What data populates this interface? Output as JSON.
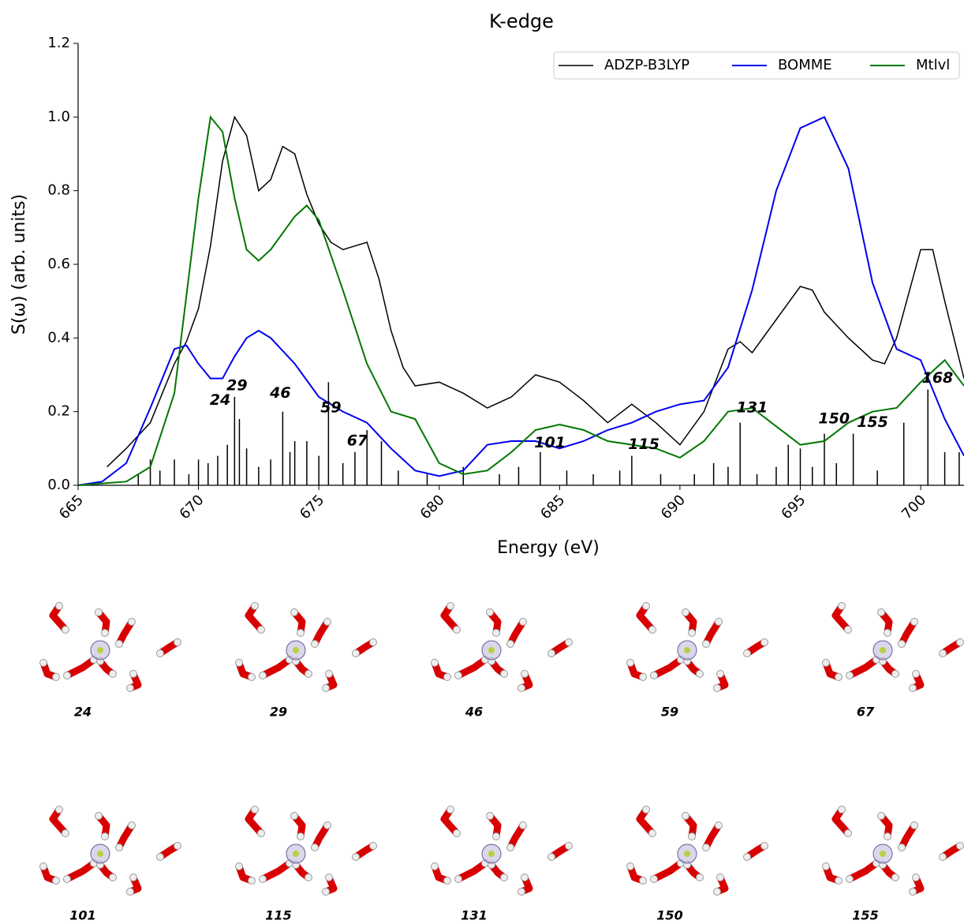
{
  "chart_data": {
    "type": "line",
    "title": "K-edge",
    "x_label": "Energy (eV)",
    "y_label": "S(ω) (arb. units)",
    "xlim": [
      665,
      701.8
    ],
    "ylim": [
      0,
      1.2
    ],
    "xticks": [
      665,
      670,
      675,
      680,
      685,
      690,
      695,
      700
    ],
    "yticks": [
      {
        "value": 0,
        "label": "0.0"
      },
      {
        "value": 0.2,
        "label": "0.2"
      },
      {
        "value": 0.4,
        "label": "0.4"
      },
      {
        "value": 0.6,
        "label": "0.6"
      },
      {
        "value": 0.8,
        "label": "0.8"
      },
      {
        "value": 1,
        "label": "1.0"
      },
      {
        "value": 1.2,
        "label": "1.2"
      }
    ],
    "legend": "upper right",
    "series": [
      {
        "name": "ADZP-B3LYP",
        "color": "#000000",
        "width": 1.5,
        "x": [
          666.2,
          667,
          668,
          669,
          669.5,
          670,
          670.5,
          671,
          671.5,
          672,
          672.5,
          673,
          673.5,
          674,
          674.5,
          675,
          675.5,
          676,
          676.5,
          677,
          677.5,
          678,
          678.5,
          679,
          680,
          681,
          682,
          683,
          684,
          685,
          686,
          687,
          688,
          689,
          690,
          691,
          692,
          692.5,
          693,
          694,
          695,
          695.5,
          696,
          697,
          698,
          698.5,
          699,
          700,
          700.5,
          701,
          701.8
        ],
        "values": [
          0.05,
          0.1,
          0.17,
          0.33,
          0.39,
          0.48,
          0.65,
          0.88,
          1.0,
          0.95,
          0.8,
          0.83,
          0.92,
          0.9,
          0.79,
          0.71,
          0.66,
          0.64,
          0.65,
          0.66,
          0.56,
          0.42,
          0.32,
          0.27,
          0.28,
          0.25,
          0.21,
          0.24,
          0.3,
          0.28,
          0.23,
          0.17,
          0.22,
          0.17,
          0.11,
          0.2,
          0.37,
          0.39,
          0.36,
          0.45,
          0.54,
          0.53,
          0.47,
          0.4,
          0.34,
          0.33,
          0.4,
          0.64,
          0.64,
          0.5,
          0.29
        ]
      },
      {
        "name": "BOMME",
        "color": "#0000ee",
        "width": 2,
        "x": [
          665,
          666,
          667,
          668,
          669,
          669.5,
          670,
          670.5,
          671,
          671.5,
          672,
          672.5,
          673,
          674,
          675,
          676,
          677,
          678,
          679,
          680,
          681,
          682,
          683,
          684,
          685,
          686,
          687,
          688,
          689,
          690,
          691,
          692,
          693,
          694,
          695,
          696,
          697,
          698,
          699,
          700,
          701,
          701.8
        ],
        "values": [
          0,
          0.01,
          0.06,
          0.21,
          0.37,
          0.38,
          0.33,
          0.29,
          0.29,
          0.35,
          0.4,
          0.42,
          0.4,
          0.33,
          0.24,
          0.2,
          0.17,
          0.1,
          0.04,
          0.025,
          0.04,
          0.11,
          0.12,
          0.12,
          0.1,
          0.12,
          0.15,
          0.17,
          0.2,
          0.22,
          0.23,
          0.32,
          0.53,
          0.8,
          0.97,
          1.0,
          0.86,
          0.55,
          0.37,
          0.34,
          0.18,
          0.08
        ]
      },
      {
        "name": "Mtlvl",
        "color": "#007700",
        "width": 2,
        "x": [
          665,
          667,
          668,
          669,
          670,
          670.5,
          671,
          671.5,
          672,
          672.5,
          673,
          674,
          674.5,
          675,
          676,
          677,
          678,
          679,
          680,
          681,
          682,
          683,
          684,
          685,
          686,
          687,
          688,
          689,
          690,
          691,
          692,
          693,
          694,
          695,
          696,
          697,
          698,
          699,
          700,
          701,
          701.8
        ],
        "values": [
          0,
          0.01,
          0.05,
          0.25,
          0.78,
          1.0,
          0.96,
          0.78,
          0.64,
          0.61,
          0.64,
          0.73,
          0.76,
          0.72,
          0.53,
          0.33,
          0.2,
          0.18,
          0.06,
          0.03,
          0.04,
          0.09,
          0.15,
          0.165,
          0.15,
          0.12,
          0.11,
          0.1,
          0.075,
          0.12,
          0.2,
          0.21,
          0.16,
          0.11,
          0.12,
          0.17,
          0.2,
          0.21,
          0.28,
          0.34,
          0.27
        ]
      }
    ],
    "sticks": {
      "color": "#000000",
      "x": [
        667.5,
        668,
        668.4,
        669,
        669.6,
        670,
        670.4,
        670.8,
        671.2,
        671.5,
        671.7,
        672,
        672.5,
        673,
        673.5,
        673.8,
        674,
        674.5,
        675,
        675.4,
        676,
        676.5,
        677,
        677.6,
        678.3,
        679.5,
        681,
        682.5,
        683.3,
        684.2,
        685.3,
        686.4,
        687.5,
        688,
        689.2,
        690.6,
        691.4,
        692,
        692.5,
        693.2,
        694,
        694.5,
        695,
        695.5,
        696,
        696.5,
        697.2,
        698.2,
        699.3,
        700.3,
        701,
        701.6
      ],
      "values": [
        0.03,
        0.07,
        0.04,
        0.07,
        0.03,
        0.07,
        0.06,
        0.08,
        0.11,
        0.24,
        0.18,
        0.1,
        0.05,
        0.07,
        0.2,
        0.09,
        0.12,
        0.12,
        0.08,
        0.28,
        0.06,
        0.09,
        0.15,
        0.12,
        0.04,
        0.03,
        0.05,
        0.03,
        0.05,
        0.09,
        0.04,
        0.03,
        0.04,
        0.08,
        0.03,
        0.03,
        0.06,
        0.05,
        0.17,
        0.03,
        0.05,
        0.11,
        0.1,
        0.05,
        0.14,
        0.06,
        0.14,
        0.04,
        0.17,
        0.26,
        0.09,
        0.09
      ]
    },
    "annotations": [
      {
        "text": "24",
        "x": 670.9,
        "y": 0.23
      },
      {
        "text": "29",
        "x": 671.6,
        "y": 0.27
      },
      {
        "text": "46",
        "x": 673.4,
        "y": 0.25
      },
      {
        "text": "59",
        "x": 675.5,
        "y": 0.21
      },
      {
        "text": "67",
        "x": 676.6,
        "y": 0.12
      },
      {
        "text": "101",
        "x": 684.6,
        "y": 0.115
      },
      {
        "text": "115",
        "x": 688.5,
        "y": 0.11
      },
      {
        "text": "131",
        "x": 693,
        "y": 0.21
      },
      {
        "text": "150",
        "x": 696.4,
        "y": 0.18
      },
      {
        "text": "155",
        "x": 698,
        "y": 0.17
      },
      {
        "text": "168",
        "x": 700.7,
        "y": 0.29
      }
    ]
  },
  "panels": [
    {
      "label": "24"
    },
    {
      "label": "29"
    },
    {
      "label": "46"
    },
    {
      "label": "59"
    },
    {
      "label": "67"
    },
    {
      "label": "101"
    },
    {
      "label": "115"
    },
    {
      "label": "131"
    },
    {
      "label": "150"
    },
    {
      "label": "155"
    }
  ]
}
